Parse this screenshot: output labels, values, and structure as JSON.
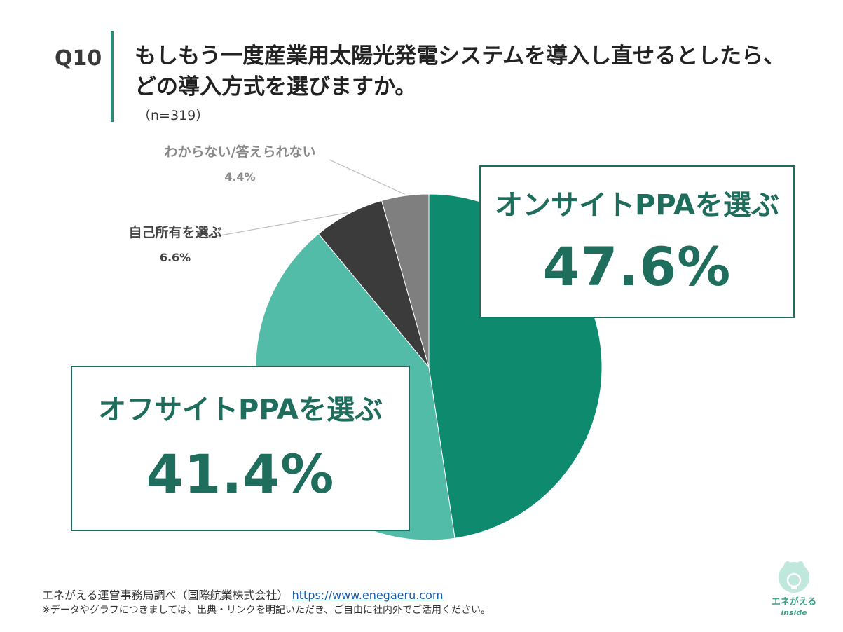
{
  "header": {
    "q_label": "Q10",
    "title_line1": "もしもう一度産業用太陽光発電システムを導入し直せるとしたら、",
    "title_line2": "どの導入方式を選びますか。",
    "n": "（n=319）"
  },
  "chart_data": {
    "type": "pie",
    "slices": [
      {
        "label": "オンサイトPPAを選ぶ",
        "value": 47.6,
        "display": "47.6%",
        "color": "#0e8a6f"
      },
      {
        "label": "オフサイトPPAを選ぶ",
        "value": 41.4,
        "display": "41.4%",
        "color": "#52bca8"
      },
      {
        "label": "自己所有を選ぶ",
        "value": 6.6,
        "display": "6.6%",
        "color": "#3b3b3b"
      },
      {
        "label": "わからない/答えられない",
        "value": 4.4,
        "display": "4.4%",
        "color": "#7f7f7f"
      }
    ],
    "start": "12 o'clock",
    "direction": "clockwise"
  },
  "footer": {
    "source": "エネがえる運営事務局調べ（国際航業株式会社）",
    "url": "https://www.enegaeru.com",
    "note": "※データやグラフにつきましては、出典・リンクを明記いただき、ご自由に社内外でご活用ください。"
  },
  "logo": {
    "text": "エネがえる",
    "sub": "inside"
  }
}
